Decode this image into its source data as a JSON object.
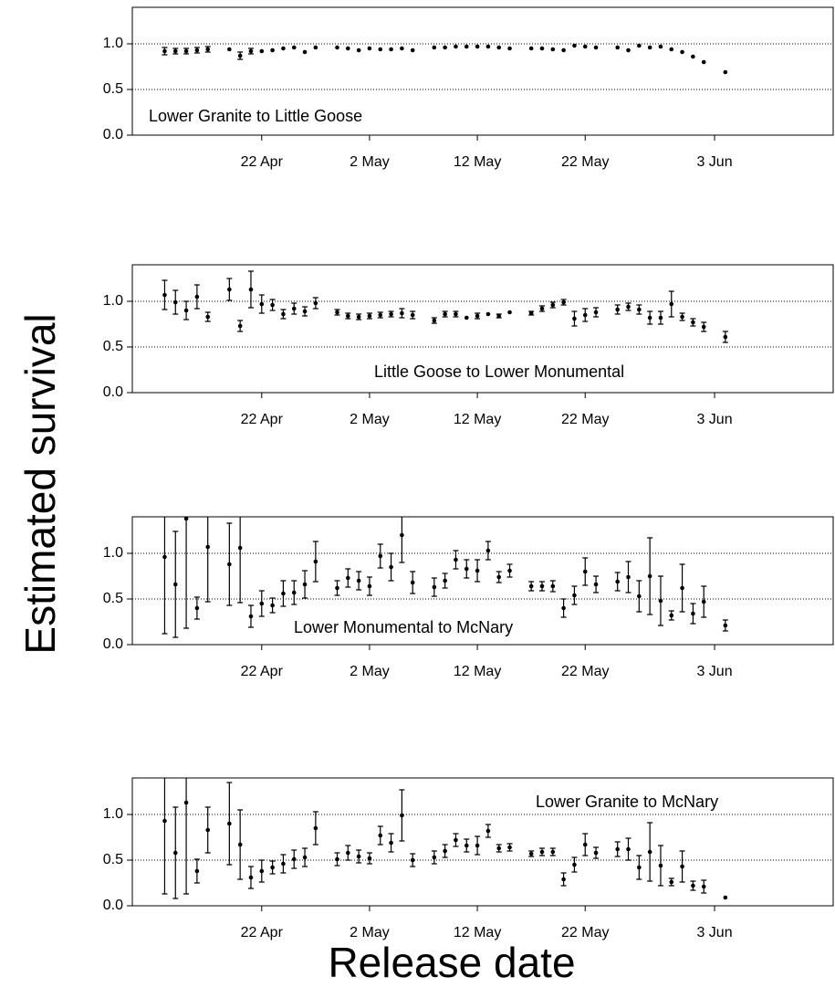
{
  "axis_labels": {
    "y": "Estimated survival",
    "x": "Release date"
  },
  "chart_data": [
    {
      "type": "errorbar",
      "title": "Lower Granite to Little Goose",
      "x": [
        "13 Apr",
        "14 Apr",
        "15 Apr",
        "16 Apr",
        "17 Apr",
        "19 Apr",
        "20 Apr",
        "21 Apr",
        "22 Apr",
        "23 Apr",
        "24 Apr",
        "25 Apr",
        "26 Apr",
        "27 Apr",
        "29 Apr",
        "30 Apr",
        "1 May",
        "2 May",
        "3 May",
        "4 May",
        "5 May",
        "6 May",
        "8 May",
        "9 May",
        "10 May",
        "11 May",
        "12 May",
        "13 May",
        "14 May",
        "15 May",
        "17 May",
        "18 May",
        "19 May",
        "20 May",
        "21 May",
        "22 May",
        "23 May",
        "25 May",
        "26 May",
        "27 May",
        "28 May",
        "29 May",
        "30 May",
        "31 May",
        "1 Jun",
        "2 Jun",
        "4 Jun"
      ],
      "values": [
        0.92,
        0.92,
        0.92,
        0.93,
        0.94,
        0.94,
        0.87,
        0.92,
        0.92,
        0.93,
        0.95,
        0.96,
        0.91,
        0.96,
        0.96,
        0.95,
        0.93,
        0.95,
        0.94,
        0.94,
        0.95,
        0.93,
        0.96,
        0.96,
        0.97,
        0.97,
        0.97,
        0.97,
        0.96,
        0.95,
        0.95,
        0.95,
        0.94,
        0.93,
        0.98,
        0.97,
        0.96,
        0.96,
        0.93,
        0.98,
        0.96,
        0.97,
        0.94,
        0.91,
        0.86,
        0.8,
        0.69
      ],
      "errors": [
        0.04,
        0.03,
        0.03,
        0.03,
        0.03,
        0,
        0.04,
        0.03,
        0,
        0,
        0,
        0,
        0,
        0,
        0,
        0,
        0,
        0,
        0,
        0,
        0,
        0,
        0,
        0,
        0,
        0,
        0,
        0,
        0,
        0,
        0,
        0,
        0,
        0,
        0,
        0,
        0,
        0,
        0,
        0,
        0,
        0,
        0,
        0,
        0,
        0,
        0
      ],
      "xlim": [
        "10 Apr",
        "14 Jun"
      ],
      "xticks": [
        "22 Apr",
        "2 May",
        "12 May",
        "22 May",
        "3 Jun"
      ],
      "ylim": [
        0,
        1.4
      ],
      "yticks": [
        {
          "value": 0,
          "label": "0.0"
        },
        {
          "value": 0.5,
          "label": "0.5"
        },
        {
          "value": 1,
          "label": "1.0"
        }
      ],
      "grid": true,
      "color": "#000000"
    },
    {
      "type": "errorbar",
      "title": "Little Goose to Lower Monumental",
      "x": [
        "13 Apr",
        "14 Apr",
        "15 Apr",
        "16 Apr",
        "17 Apr",
        "19 Apr",
        "20 Apr",
        "21 Apr",
        "22 Apr",
        "23 Apr",
        "24 Apr",
        "25 Apr",
        "26 Apr",
        "27 Apr",
        "29 Apr",
        "30 Apr",
        "1 May",
        "2 May",
        "3 May",
        "4 May",
        "5 May",
        "6 May",
        "8 May",
        "9 May",
        "10 May",
        "11 May",
        "12 May",
        "13 May",
        "14 May",
        "15 May",
        "17 May",
        "18 May",
        "19 May",
        "20 May",
        "21 May",
        "22 May",
        "23 May",
        "25 May",
        "26 May",
        "27 May",
        "28 May",
        "29 May",
        "30 May",
        "31 May",
        "1 Jun",
        "2 Jun",
        "4 Jun"
      ],
      "values": [
        1.07,
        0.99,
        0.9,
        1.05,
        0.83,
        1.13,
        0.73,
        1.13,
        0.97,
        0.96,
        0.86,
        0.92,
        0.89,
        0.98,
        0.88,
        0.84,
        0.83,
        0.84,
        0.85,
        0.86,
        0.87,
        0.85,
        0.79,
        0.86,
        0.86,
        0.82,
        0.84,
        0.86,
        0.84,
        0.88,
        0.87,
        0.92,
        0.96,
        0.99,
        0.81,
        0.85,
        0.88,
        0.91,
        0.94,
        0.91,
        0.82,
        0.82,
        0.97,
        0.83,
        0.77,
        0.72,
        0.61
      ],
      "errors": [
        0.16,
        0.13,
        0.1,
        0.13,
        0.05,
        0.12,
        0.06,
        0.2,
        0.1,
        0.06,
        0.05,
        0.06,
        0.05,
        0.06,
        0.03,
        0.03,
        0.03,
        0.03,
        0.03,
        0.03,
        0.05,
        0.04,
        0.03,
        0.03,
        0.03,
        0,
        0.03,
        0,
        0.02,
        0,
        0.02,
        0.03,
        0.03,
        0.03,
        0.08,
        0.07,
        0.05,
        0.05,
        0.04,
        0.05,
        0.07,
        0.07,
        0.14,
        0.04,
        0.04,
        0.05,
        0.06
      ],
      "xlim": [
        "10 Apr",
        "14 Jun"
      ],
      "xticks": [
        "22 Apr",
        "2 May",
        "12 May",
        "22 May",
        "3 Jun"
      ],
      "ylim": [
        0,
        1.4
      ],
      "yticks": [
        {
          "value": 0,
          "label": "0.0"
        },
        {
          "value": 0.5,
          "label": "0.5"
        },
        {
          "value": 1,
          "label": "1.0"
        }
      ],
      "grid": true,
      "color": "#000000"
    },
    {
      "type": "errorbar",
      "title": "Lower Monumental to McNary",
      "x": [
        "13 Apr",
        "14 Apr",
        "15 Apr",
        "16 Apr",
        "17 Apr",
        "19 Apr",
        "20 Apr",
        "21 Apr",
        "22 Apr",
        "23 Apr",
        "24 Apr",
        "25 Apr",
        "26 Apr",
        "27 Apr",
        "29 Apr",
        "30 Apr",
        "1 May",
        "2 May",
        "3 May",
        "4 May",
        "5 May",
        "6 May",
        "8 May",
        "9 May",
        "10 May",
        "11 May",
        "12 May",
        "13 May",
        "14 May",
        "15 May",
        "17 May",
        "18 May",
        "19 May",
        "20 May",
        "21 May",
        "22 May",
        "23 May",
        "25 May",
        "26 May",
        "27 May",
        "28 May",
        "29 May",
        "30 May",
        "31 May",
        "1 Jun",
        "2 Jun",
        "4 Jun"
      ],
      "values": [
        0.96,
        0.66,
        1.38,
        0.4,
        1.07,
        0.88,
        1.06,
        0.31,
        0.45,
        0.43,
        0.56,
        0.57,
        0.66,
        0.91,
        0.62,
        0.73,
        0.7,
        0.64,
        0.97,
        0.85,
        1.2,
        0.68,
        0.63,
        0.7,
        0.93,
        0.83,
        0.81,
        1.03,
        0.74,
        0.81,
        0.64,
        0.64,
        0.64,
        0.4,
        0.54,
        0.8,
        0.66,
        0.69,
        0.74,
        0.53,
        0.75,
        0.48,
        0.32,
        0.62,
        0.34,
        0.47,
        0.21
      ],
      "errors": [
        0.84,
        0.58,
        1.2,
        0.12,
        0.6,
        0.45,
        0.6,
        0.12,
        0.14,
        0.08,
        0.14,
        0.13,
        0.15,
        0.22,
        0.08,
        0.1,
        0.1,
        0.1,
        0.13,
        0.15,
        0.3,
        0.12,
        0.1,
        0.08,
        0.1,
        0.1,
        0.12,
        0.1,
        0.06,
        0.07,
        0.05,
        0.05,
        0.06,
        0.1,
        0.1,
        0.15,
        0.09,
        0.1,
        0.17,
        0.17,
        0.42,
        0.27,
        0.05,
        0.26,
        0.11,
        0.17,
        0.06
      ],
      "xlim": [
        "10 Apr",
        "14 Jun"
      ],
      "xticks": [
        "22 Apr",
        "2 May",
        "12 May",
        "22 May",
        "3 Jun"
      ],
      "ylim": [
        0,
        1.4
      ],
      "yticks": [
        {
          "value": 0,
          "label": "0.0"
        },
        {
          "value": 0.5,
          "label": "0.5"
        },
        {
          "value": 1,
          "label": "1.0"
        }
      ],
      "grid": true,
      "color": "#000000"
    },
    {
      "type": "errorbar",
      "title": "Lower Granite to McNary",
      "x": [
        "13 Apr",
        "14 Apr",
        "15 Apr",
        "16 Apr",
        "17 Apr",
        "19 Apr",
        "20 Apr",
        "21 Apr",
        "22 Apr",
        "23 Apr",
        "24 Apr",
        "25 Apr",
        "26 Apr",
        "27 Apr",
        "29 Apr",
        "30 Apr",
        "1 May",
        "2 May",
        "3 May",
        "4 May",
        "5 May",
        "6 May",
        "8 May",
        "9 May",
        "10 May",
        "11 May",
        "12 May",
        "13 May",
        "14 May",
        "15 May",
        "17 May",
        "18 May",
        "19 May",
        "20 May",
        "21 May",
        "22 May",
        "23 May",
        "25 May",
        "26 May",
        "27 May",
        "28 May",
        "29 May",
        "30 May",
        "31 May",
        "1 Jun",
        "2 Jun",
        "4 Jun"
      ],
      "values": [
        0.93,
        0.58,
        1.13,
        0.38,
        0.83,
        0.9,
        0.67,
        0.31,
        0.38,
        0.42,
        0.46,
        0.51,
        0.53,
        0.85,
        0.51,
        0.58,
        0.54,
        0.52,
        0.77,
        0.69,
        0.99,
        0.5,
        0.53,
        0.6,
        0.72,
        0.66,
        0.66,
        0.82,
        0.63,
        0.64,
        0.57,
        0.59,
        0.59,
        0.29,
        0.45,
        0.67,
        0.58,
        0.62,
        0.62,
        0.42,
        0.59,
        0.44,
        0.26,
        0.43,
        0.22,
        0.21,
        0.09
      ],
      "errors": [
        0.8,
        0.5,
        1.0,
        0.13,
        0.25,
        0.45,
        0.38,
        0.12,
        0.12,
        0.07,
        0.1,
        0.1,
        0.1,
        0.18,
        0.07,
        0.08,
        0.07,
        0.06,
        0.1,
        0.1,
        0.28,
        0.07,
        0.07,
        0.07,
        0.07,
        0.07,
        0.1,
        0.07,
        0.04,
        0.04,
        0.03,
        0.04,
        0.04,
        0.07,
        0.08,
        0.12,
        0.06,
        0.08,
        0.12,
        0.13,
        0.32,
        0.22,
        0.04,
        0.17,
        0.05,
        0.07,
        0
      ],
      "xlim": [
        "10 Apr",
        "14 Jun"
      ],
      "xticks": [
        "22 Apr",
        "2 May",
        "12 May",
        "22 May",
        "3 Jun"
      ],
      "ylim": [
        0,
        1.4
      ],
      "yticks": [
        {
          "value": 0,
          "label": "0.0"
        },
        {
          "value": 0.5,
          "label": "0.5"
        },
        {
          "value": 1,
          "label": "1.0"
        }
      ],
      "grid": true,
      "color": "#000000"
    }
  ]
}
